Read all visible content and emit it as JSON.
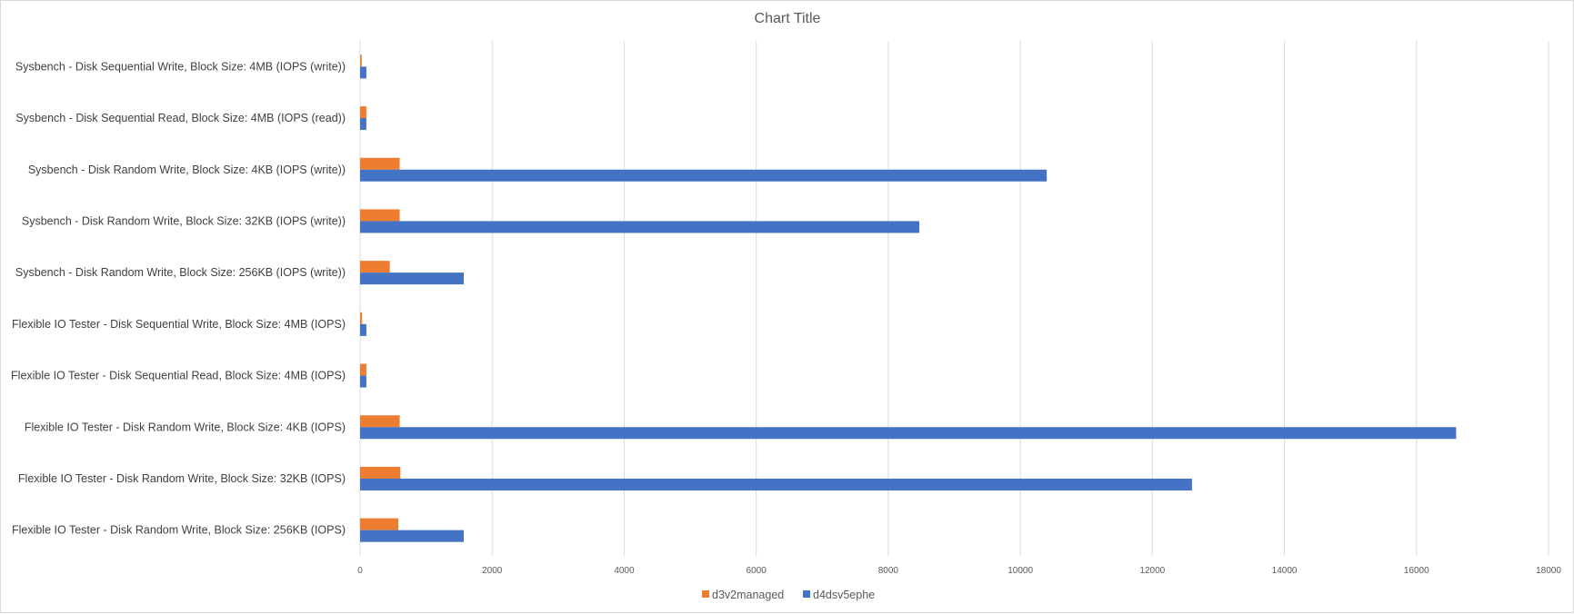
{
  "chart_data": {
    "type": "bar",
    "orientation": "horizontal",
    "title": "Chart Title",
    "xlabel": "",
    "ylabel": "",
    "xlim": [
      0,
      18000
    ],
    "x_ticks": [
      0,
      2000,
      4000,
      6000,
      8000,
      10000,
      12000,
      14000,
      16000,
      18000
    ],
    "grid": true,
    "legend_position": "bottom",
    "categories": [
      "Sysbench - Disk Sequential Write, Block Size: 4MB (IOPS (write))",
      "Sysbench - Disk Sequential Read, Block Size: 4MB (IOPS (read))",
      "Sysbench - Disk Random Write, Block Size: 4KB (IOPS (write))",
      "Sysbench - Disk Random Write, Block Size: 32KB (IOPS (write))",
      "Sysbench - Disk Random Write, Block Size: 256KB (IOPS (write))",
      "Flexible IO Tester - Disk Sequential Write, Block Size: 4MB (IOPS)",
      "Flexible IO Tester - Disk Sequential Read, Block Size: 4MB (IOPS)",
      "Flexible IO Tester - Disk Random Write, Block Size: 4KB (IOPS)",
      "Flexible IO Tester - Disk Random Write, Block Size: 32KB (IOPS)",
      "Flexible IO Tester - Disk Random Write, Block Size: 256KB (IOPS)"
    ],
    "series": [
      {
        "name": "d3v2managed",
        "color": "#ed7d31",
        "values": [
          25,
          95,
          600,
          600,
          450,
          30,
          95,
          600,
          610,
          580
        ]
      },
      {
        "name": "d4dsv5ephe",
        "color": "#4472c4",
        "values": [
          95,
          95,
          10400,
          8470,
          1570,
          95,
          95,
          16600,
          12600,
          1570
        ]
      }
    ]
  }
}
